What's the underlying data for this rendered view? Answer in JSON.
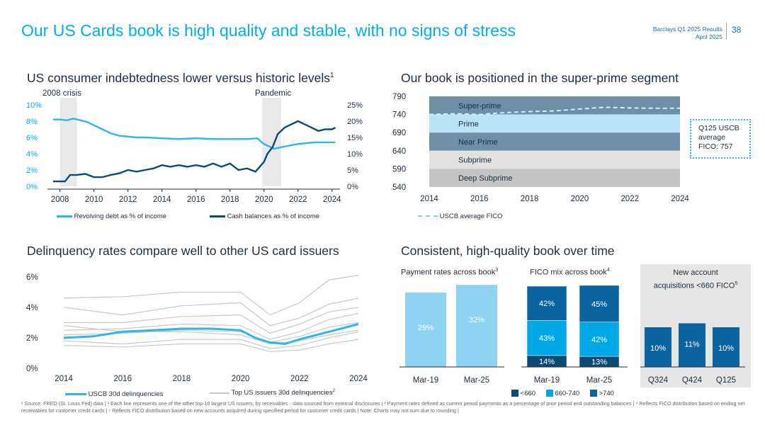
{
  "header": {
    "title": "Our US Cards book is high quality and stable, with no signs of stress",
    "results_line": "Barclays Q1 2025 Results",
    "date_line": "April 2025",
    "page_number": "38"
  },
  "panels": {
    "p1_title": "US consumer indebtedness lower versus historic levels",
    "p1_sup": "1",
    "p2_title": "Our book is positioned in the super-prime segment",
    "p3_title": "Delinquency rates compare well to other US card issuers",
    "p4_title": "Consistent, high-quality book over time"
  },
  "colors": {
    "light_blue": "#2cb6ec",
    "dark_blue": "#0d4a72",
    "mid_blue": "#0072b7",
    "grey_line": "#c8c8c8",
    "shade": "#e9e9e9"
  },
  "chart_data": [
    {
      "id": "indebtedness",
      "type": "line",
      "annotations": [
        "2008 crisis",
        "Pandemic"
      ],
      "shaded_periods": [
        [
          2008,
          2009
        ],
        [
          2019.9,
          2021
        ]
      ],
      "x_ticks": [
        "2008",
        "2010",
        "2012",
        "2014",
        "2016",
        "2018",
        "2020",
        "2022",
        "2024"
      ],
      "xlim": [
        2007.6,
        2024.3
      ],
      "y_left_ticks": [
        "0%",
        "2%",
        "4%",
        "6%",
        "8%",
        "10%"
      ],
      "ylim_left": [
        0,
        10
      ],
      "y_right_ticks": [
        "0%",
        "5%",
        "10%",
        "15%",
        "20%",
        "25%"
      ],
      "ylim_right": [
        0,
        25
      ],
      "series": [
        {
          "name": "Revolving debt as % of income",
          "axis": "left",
          "color": "#2cb6ec",
          "x": [
            2007.6,
            2008.0,
            2008.4,
            2008.8,
            2009.2,
            2009.6,
            2010.0,
            2010.5,
            2011.0,
            2011.5,
            2012.0,
            2012.5,
            2013.0,
            2014.0,
            2015.0,
            2016.0,
            2017.0,
            2018.0,
            2019.0,
            2019.6,
            2020.0,
            2020.3,
            2020.6,
            2021.0,
            2021.5,
            2022.0,
            2022.5,
            2023.0,
            2023.5,
            2024.0,
            2024.2
          ],
          "y": [
            8.2,
            8.2,
            8.1,
            8.3,
            8.1,
            7.9,
            7.5,
            7.0,
            6.5,
            6.2,
            6.1,
            6.0,
            6.0,
            5.9,
            5.8,
            5.9,
            5.8,
            5.8,
            5.8,
            5.9,
            5.2,
            4.9,
            4.6,
            4.8,
            5.0,
            5.2,
            5.3,
            5.4,
            5.4,
            5.4,
            5.4
          ]
        },
        {
          "name": "Cash balances as % of income",
          "axis": "right",
          "color": "#0d4a72",
          "x": [
            2007.6,
            2008.0,
            2008.3,
            2008.6,
            2009.0,
            2009.5,
            2010.0,
            2010.5,
            2011.0,
            2011.5,
            2012.0,
            2012.5,
            2013.0,
            2013.5,
            2014.0,
            2014.5,
            2015.0,
            2015.5,
            2016.0,
            2016.5,
            2017.0,
            2017.5,
            2018.0,
            2018.5,
            2019.0,
            2019.5,
            2020.0,
            2020.2,
            2020.5,
            2020.8,
            2021.2,
            2021.6,
            2022.0,
            2022.4,
            2022.8,
            2023.2,
            2023.6,
            2024.0,
            2024.2
          ],
          "y": [
            1.5,
            1.5,
            1.5,
            3.5,
            3.5,
            3.8,
            2.8,
            2.8,
            3.5,
            4.0,
            5.0,
            4.5,
            5.0,
            5.5,
            6.5,
            6.0,
            6.5,
            6.0,
            6.5,
            6.0,
            7.0,
            6.0,
            7.0,
            5.0,
            5.5,
            4.5,
            7.5,
            10.0,
            12.0,
            16.0,
            18.0,
            19.0,
            20.0,
            19.0,
            18.0,
            17.0,
            17.5,
            17.5,
            18.0
          ]
        }
      ]
    },
    {
      "id": "fico",
      "type": "area",
      "x_ticks": [
        "2014",
        "2016",
        "2018",
        "2020",
        "2022",
        "2024"
      ],
      "xlim": [
        2014,
        2024
      ],
      "y_ticks": [
        "540",
        "590",
        "640",
        "690",
        "740",
        "790"
      ],
      "ylim": [
        540,
        790
      ],
      "bands": [
        {
          "label": "Super-prime",
          "from": 740,
          "to": 790,
          "color": "#6f8fa6"
        },
        {
          "label": "Prime",
          "from": 690,
          "to": 740,
          "color": "#b8e4f8"
        },
        {
          "label": "Near Prime",
          "from": 640,
          "to": 690,
          "color": "#6f8fa6"
        },
        {
          "label": "Subprime",
          "from": 590,
          "to": 640,
          "color": "#e2e2e2"
        },
        {
          "label": "Deep Subprime",
          "from": 540,
          "to": 590,
          "color": "#c4c4c4"
        }
      ],
      "series": [
        {
          "name": "USCB average FICO",
          "x": [
            2014,
            2015,
            2016,
            2017,
            2018,
            2019,
            2020,
            2021,
            2022,
            2023,
            2024
          ],
          "y": [
            740,
            742,
            740,
            745,
            748,
            750,
            755,
            760,
            758,
            757,
            757
          ]
        }
      ],
      "callout": "Q125 USCB average FICO: 757"
    },
    {
      "id": "delinquency",
      "type": "line",
      "x_ticks": [
        "2014",
        "2016",
        "2018",
        "2020",
        "2022",
        "2024"
      ],
      "xlim": [
        2014,
        2024
      ],
      "y_ticks": [
        "0%",
        "2%",
        "4%",
        "6%"
      ],
      "ylim": [
        0,
        6.5
      ],
      "highlight": {
        "name": "USCB 30d delinquencies",
        "x": [
          2014,
          2015,
          2016,
          2017,
          2018,
          2019,
          2020,
          2020.5,
          2021,
          2021.5,
          2022,
          2023,
          2024
        ],
        "y": [
          2.0,
          2.1,
          2.4,
          2.5,
          2.6,
          2.6,
          2.5,
          2.0,
          1.7,
          1.6,
          1.9,
          2.4,
          2.9
        ]
      },
      "peers_name": "Top US issuers 30d delinquencies",
      "peers": [
        {
          "x": [
            2014,
            2016,
            2018,
            2020,
            2021,
            2022,
            2023,
            2024
          ],
          "y": [
            1.8,
            1.6,
            1.9,
            1.9,
            1.3,
            1.5,
            2.0,
            2.4
          ]
        },
        {
          "x": [
            2014,
            2016,
            2018,
            2020,
            2021,
            2022,
            2023,
            2024
          ],
          "y": [
            2.2,
            2.3,
            2.5,
            2.4,
            1.7,
            2.1,
            2.7,
            3.0
          ]
        },
        {
          "x": [
            2014,
            2016,
            2018,
            2020,
            2021,
            2022,
            2023,
            2024
          ],
          "y": [
            1.5,
            1.4,
            1.6,
            1.6,
            1.1,
            1.2,
            1.6,
            1.9
          ]
        },
        {
          "x": [
            2014,
            2016,
            2018,
            2020,
            2021,
            2022,
            2023,
            2024
          ],
          "y": [
            2.5,
            2.6,
            2.9,
            2.8,
            1.9,
            2.4,
            3.2,
            3.6
          ]
        },
        {
          "x": [
            2014,
            2016,
            2018,
            2020,
            2021,
            2022,
            2023,
            2024
          ],
          "y": [
            4.0,
            3.5,
            4.1,
            4.3,
            2.8,
            3.3,
            4.2,
            4.6
          ]
        },
        {
          "x": [
            2014,
            2016,
            2018,
            2020,
            2021,
            2022,
            2023,
            2024
          ],
          "y": [
            3.0,
            3.0,
            3.4,
            3.5,
            2.3,
            2.9,
            3.7,
            4.0
          ]
        },
        {
          "x": [
            2014,
            2016,
            2018,
            2020,
            2021,
            2022,
            2023,
            2024
          ],
          "y": [
            4.6,
            4.7,
            5.0,
            5.0,
            3.5,
            4.3,
            5.8,
            6.1
          ]
        },
        {
          "x": [
            2014,
            2016,
            2018,
            2020,
            2021,
            2022,
            2023,
            2024
          ],
          "y": [
            2.8,
            2.4,
            2.4,
            2.2,
            1.6,
            1.8,
            2.2,
            2.5
          ]
        }
      ]
    },
    {
      "id": "payment_rates",
      "type": "bar",
      "title": "Payment rates across book",
      "sup": "3",
      "categories": [
        "Mar-19",
        "Mar-25"
      ],
      "values": [
        29,
        32
      ],
      "labels": [
        "29%",
        "32%"
      ],
      "ylim": [
        0,
        60
      ]
    },
    {
      "id": "fico_mix",
      "type": "bar",
      "stacked": true,
      "title": "FICO mix across book",
      "sup": "4",
      "categories": [
        "Mar-19",
        "Mar-25"
      ],
      "series": [
        {
          "name": "<660",
          "values": [
            14,
            13
          ],
          "labels": [
            "14%",
            "13%"
          ],
          "color": "#0d4a72"
        },
        {
          "name": "660-740",
          "values": [
            43,
            42
          ],
          "labels": [
            "43%",
            "42%"
          ],
          "color": "#00a8e8"
        },
        {
          "name": ">740",
          "values": [
            42,
            45
          ],
          "labels": [
            "42%",
            "45%"
          ],
          "color": "#0b64a0"
        }
      ]
    },
    {
      "id": "new_accounts",
      "type": "bar",
      "title_line1": "New account",
      "title_line2": "acquisitions <660 FICO",
      "sup": "5",
      "categories": [
        "Q324",
        "Q424",
        "Q125"
      ],
      "values": [
        10,
        11,
        10
      ],
      "labels": [
        "10%",
        "11%",
        "10%"
      ],
      "ylim": [
        0,
        20
      ]
    }
  ],
  "legends": {
    "revolving": "Revolving debt as % of income",
    "cash": "Cash balances as % of income",
    "uscb_fico": "USCB average FICO",
    "uscb_del": "USCB 30d delinquencies",
    "top_del": "Top US issuers 30d delinquencies",
    "top_del_sup": "2",
    "mix_lt660": "<660",
    "mix_660_740": "660-740",
    "mix_gt740": ">740"
  },
  "callout": {
    "line1": "Q125 USCB",
    "line2": "average",
    "line3": "FICO: 757"
  },
  "footnote": "¹ Source: FRED (St. Louis Fed) data | ² Each line represents one of the other top-10 largest US issuers, by receivables - data sourced from external disclosures | ³ Payment rates defined as current period payments as a percentage of prior period end outstanding balances | ⁴ Reflects FICO distribution based on ending net receivables for customer credit cards | ⁵ Reflects FICO distribution based on new accounts acquired during specified period for customer credit cards | Note: Charts may not sum due to rounding |"
}
